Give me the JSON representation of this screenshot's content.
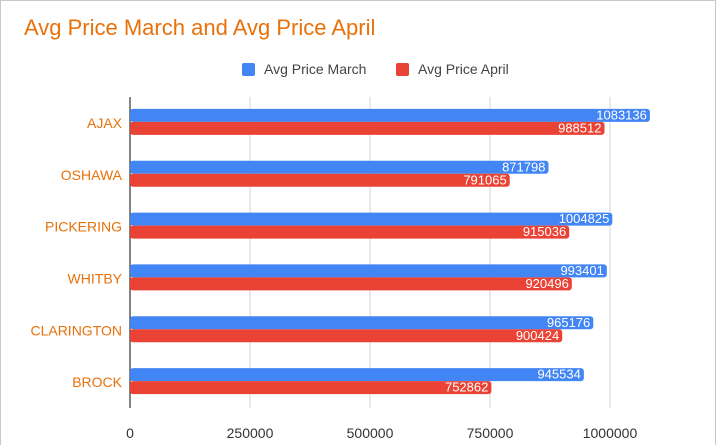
{
  "chart_data": {
    "type": "bar",
    "orientation": "horizontal",
    "title": "Avg Price March and Avg Price April",
    "categories": [
      "AJAX",
      "OSHAWA",
      "PICKERING",
      "WHITBY",
      "CLARINGTON",
      "BROCK"
    ],
    "series": [
      {
        "name": "Avg Price March",
        "color": "#4285f4",
        "values": [
          1083136,
          871798,
          1004825,
          993401,
          965176,
          945534
        ]
      },
      {
        "name": "Avg Price April",
        "color": "#ea4335",
        "values": [
          988512,
          791065,
          915036,
          920496,
          900424,
          752862
        ]
      }
    ],
    "xlim": [
      0,
      1000000
    ],
    "xticks": [
      0,
      250000,
      500000,
      750000,
      1000000
    ],
    "xtick_labels": [
      "0",
      "250000",
      "500000",
      "750000",
      "1000000"
    ],
    "grid": true,
    "legend_position": "top",
    "data_labels": true,
    "title_color": "#e8710a",
    "category_label_color": "#e8710a"
  }
}
